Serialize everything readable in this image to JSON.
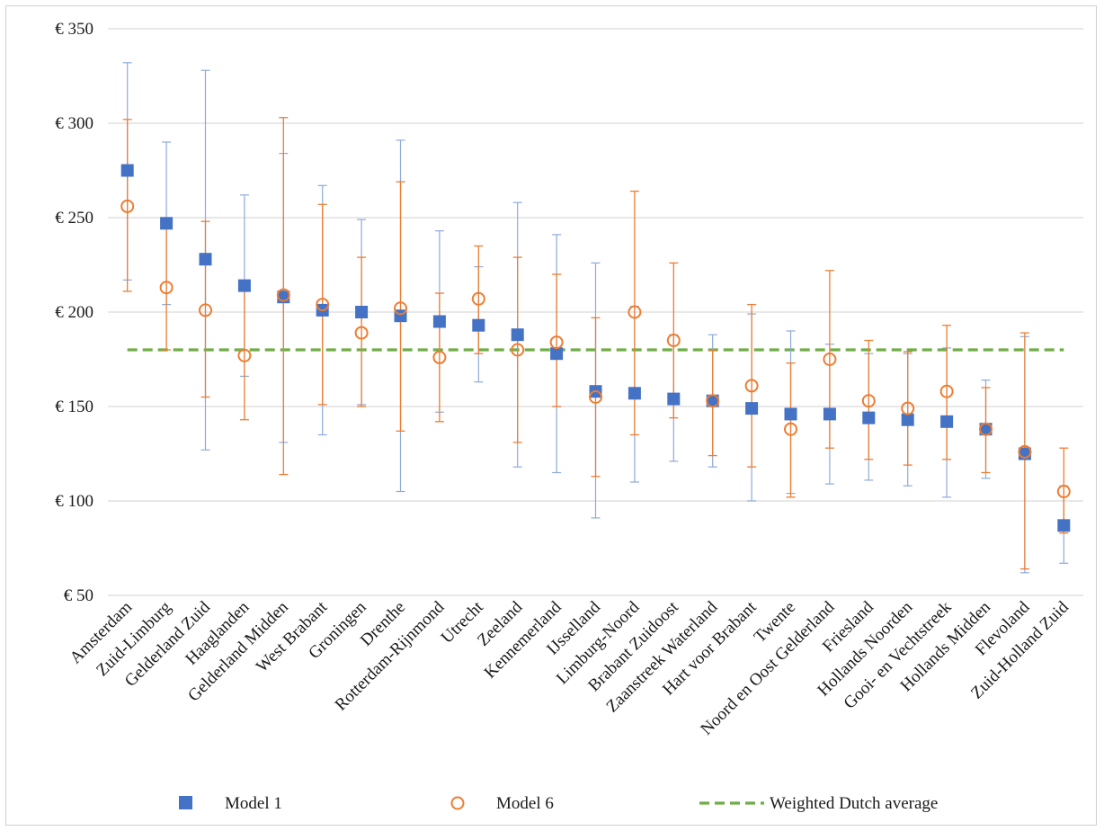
{
  "chart_data": {
    "type": "scatter",
    "title": "",
    "xlabel": "",
    "ylabel": "",
    "ylim": [
      50,
      350
    ],
    "yticks": [
      50,
      100,
      150,
      200,
      250,
      300,
      350
    ],
    "ytick_labels": [
      "€ 50",
      "€ 100",
      "€ 150",
      "€ 200",
      "€ 250",
      "€ 300",
      "€ 350"
    ],
    "grid": true,
    "legend_position": "bottom",
    "categories": [
      "Amsterdam",
      "Zuid-Limburg",
      "Gelderland Zuid",
      "Haaglanden",
      "Gelderland Midden",
      "West Brabant",
      "Groningen",
      "Drenthe",
      "Rotterdam-Rijnmond",
      "Utrecht",
      "Zeeland",
      "Kennemerland",
      "IJsselland",
      "Limburg-Noord",
      "Brabant Zuidoost",
      "Zaanstreek Waterland",
      "Hart voor Brabant",
      "Twente",
      "Noord en Oost Gelderland",
      "Friesland",
      "Hollands Noorden",
      "Gooi- en Vechtstreek",
      "Hollands Midden",
      "Flevoland",
      "Zuid-Holland Zuid"
    ],
    "series": [
      {
        "name": "Model 1",
        "color": "#4472C4",
        "marker": "square",
        "values": [
          275,
          247,
          228,
          214,
          208,
          201,
          200,
          198,
          195,
          193,
          188,
          178,
          158,
          157,
          154,
          153,
          149,
          146,
          146,
          144,
          143,
          142,
          138,
          125,
          87
        ],
        "lower": [
          217,
          204,
          127,
          166,
          131,
          135,
          151,
          105,
          147,
          163,
          118,
          115,
          91,
          110,
          121,
          118,
          100,
          104,
          109,
          111,
          108,
          102,
          112,
          62,
          67
        ],
        "upper": [
          332,
          290,
          328,
          262,
          284,
          267,
          249,
          291,
          243,
          224,
          258,
          241,
          226,
          203,
          188,
          188,
          199,
          190,
          183,
          178,
          178,
          181,
          164,
          187,
          108
        ]
      },
      {
        "name": "Model 6",
        "color": "#ED7D31",
        "marker": "open-circle",
        "values": [
          256,
          213,
          201,
          177,
          209,
          204,
          189,
          202,
          176,
          207,
          180,
          184,
          155,
          200,
          185,
          153,
          161,
          138,
          175,
          153,
          149,
          158,
          138,
          126,
          105
        ],
        "lower": [
          211,
          180,
          155,
          143,
          114,
          151,
          150,
          137,
          142,
          178,
          131,
          150,
          113,
          135,
          144,
          124,
          118,
          102,
          128,
          122,
          119,
          122,
          115,
          64,
          83
        ],
        "upper": [
          302,
          249,
          248,
          213,
          303,
          257,
          229,
          269,
          210,
          235,
          229,
          220,
          197,
          264,
          226,
          180,
          204,
          173,
          222,
          185,
          179,
          193,
          160,
          189,
          128
        ]
      },
      {
        "name": "Weighted Dutch average",
        "color": "#70AD47",
        "style": "dashed-line",
        "value": 180
      }
    ]
  }
}
